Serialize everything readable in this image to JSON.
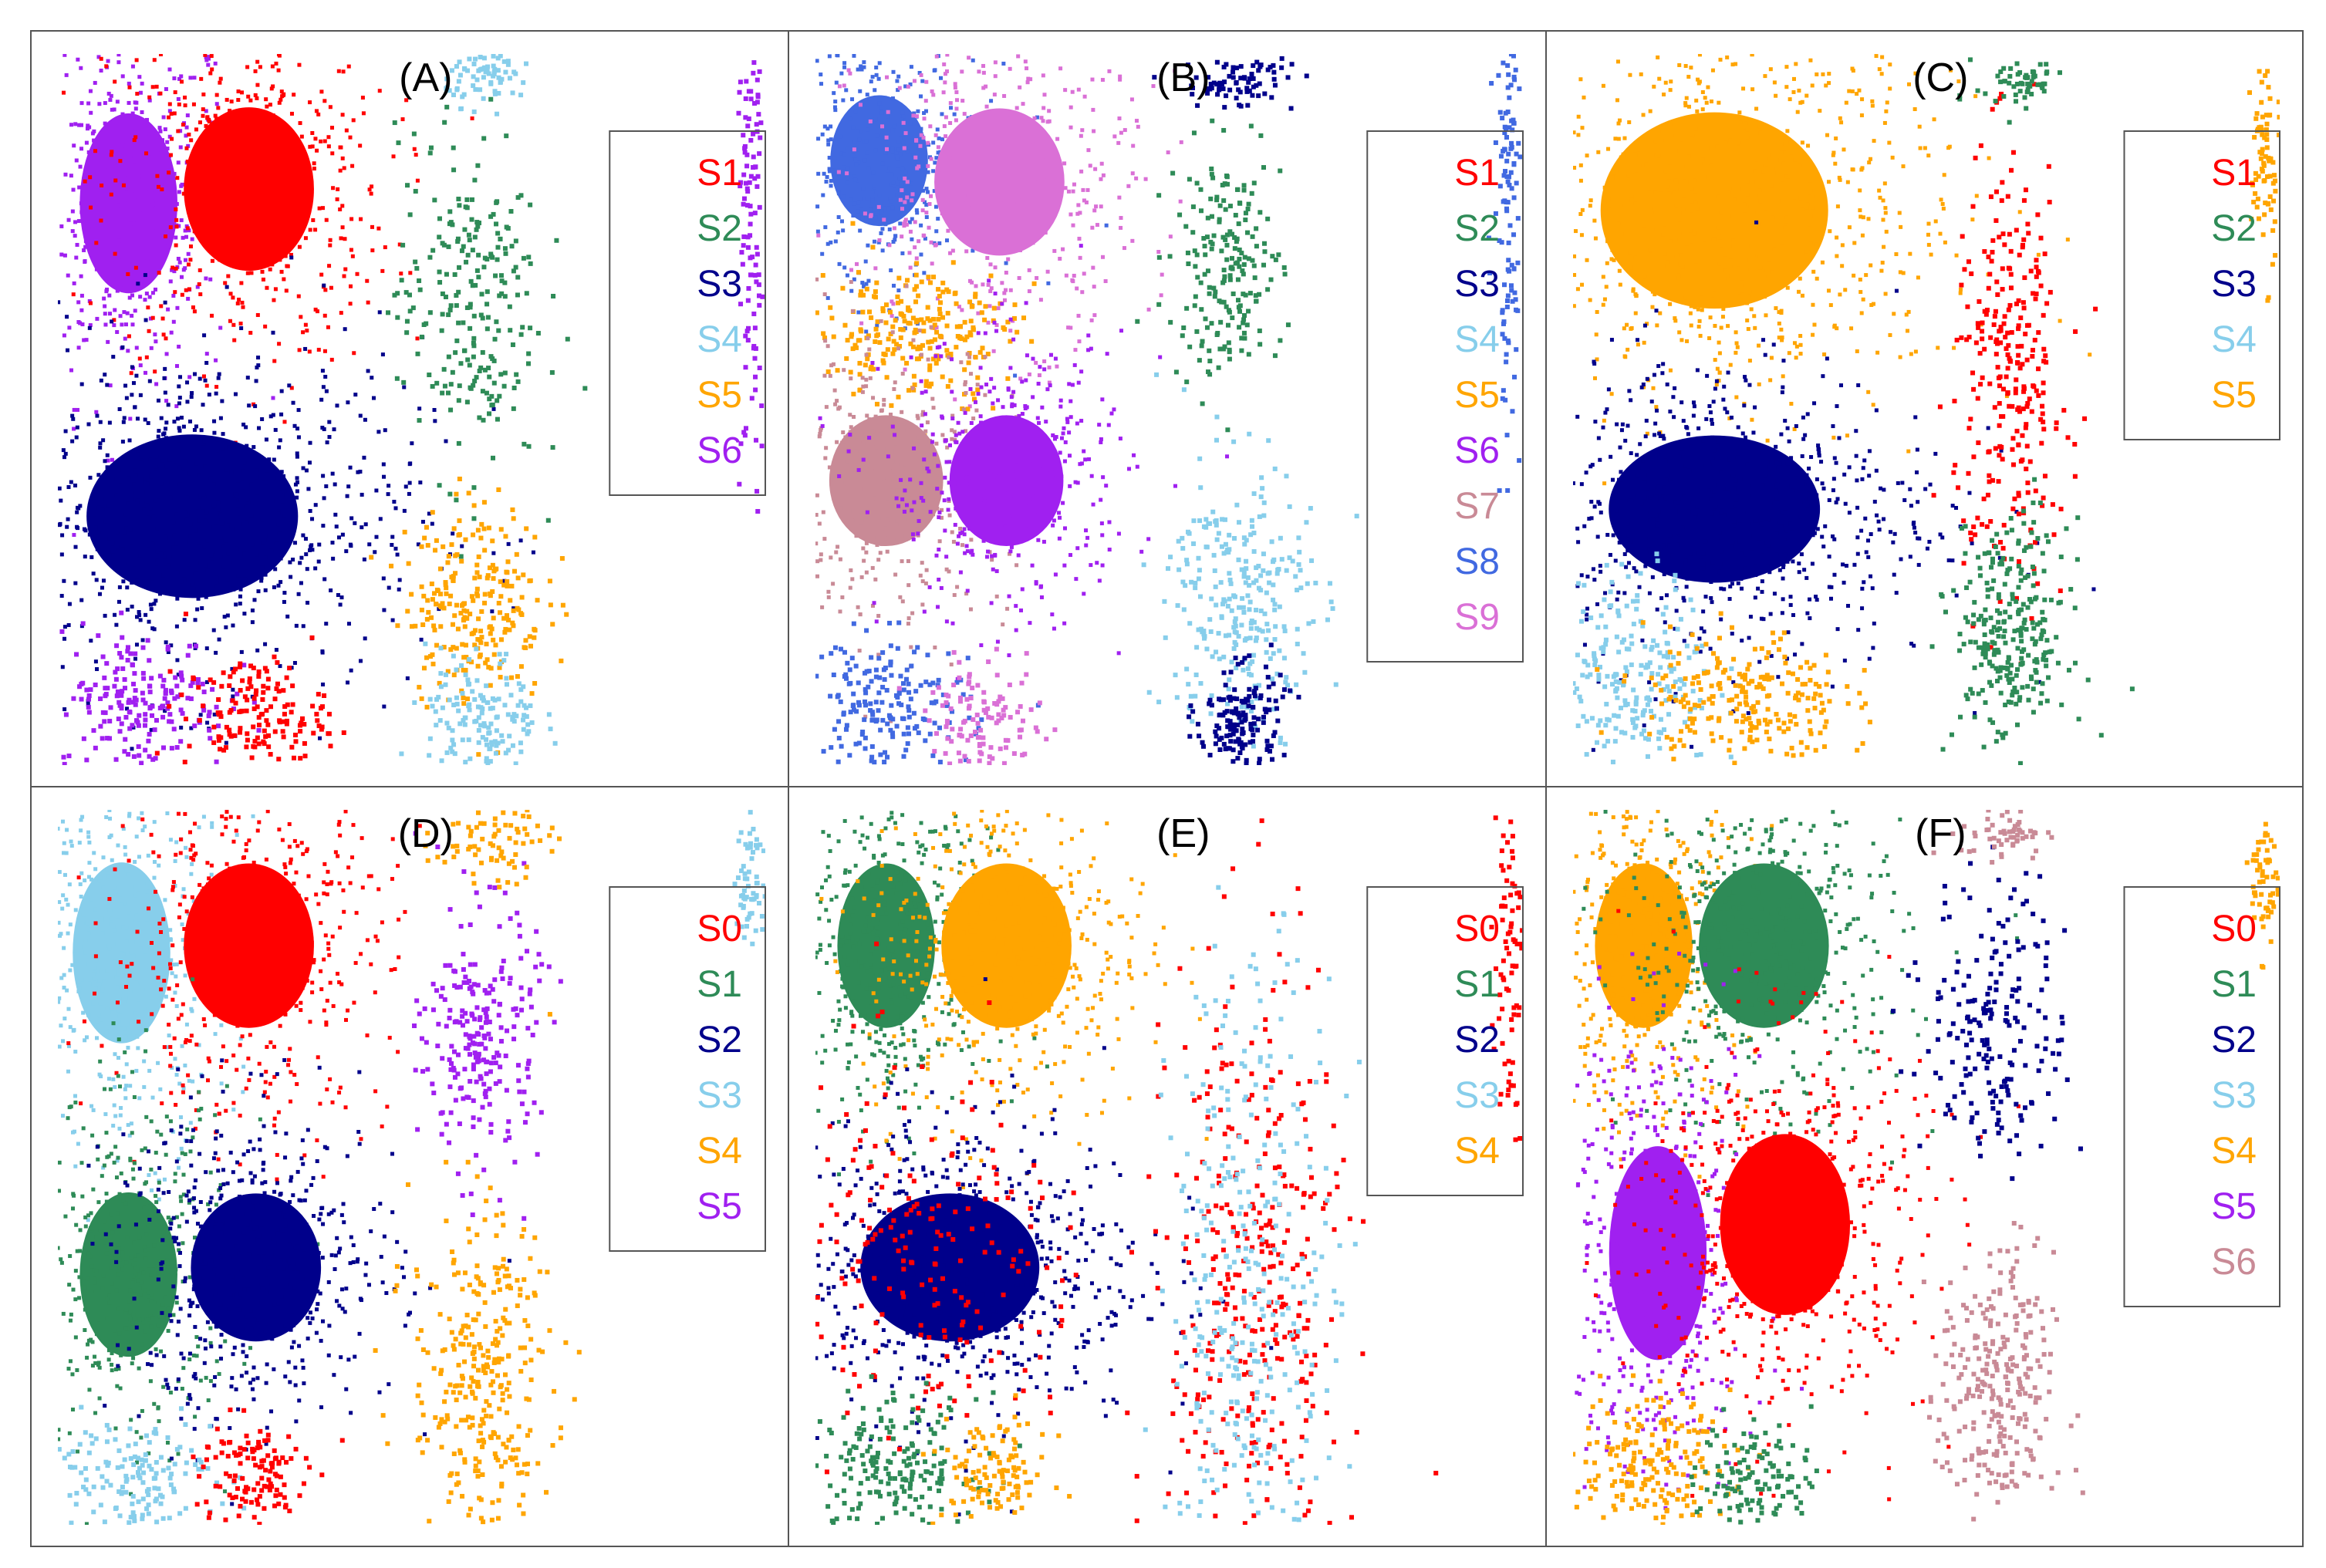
{
  "figure": {
    "description": "Six-panel scatter plot grid of clustered state assignments",
    "palette": {
      "red": "#ff0000",
      "green": "#2e8b57",
      "navy": "#00008b",
      "lightblue": "#87ceeb",
      "orange": "#ffa500",
      "purple": "#a020f0",
      "rosybrown": "#c98a96",
      "royalblue": "#4169e1",
      "orchid": "#da70d6"
    }
  },
  "chart_data": [
    {
      "type": "scatter",
      "panel_label": "(A)",
      "legend": [
        {
          "label": "S1",
          "color": "#ff0000"
        },
        {
          "label": "S2",
          "color": "#2e8b57"
        },
        {
          "label": "S3",
          "color": "#00008b"
        },
        {
          "label": "S4",
          "color": "#87ceeb"
        },
        {
          "label": "S5",
          "color": "#ffa500"
        },
        {
          "label": "S6",
          "color": "#a020f0"
        }
      ],
      "xlim": [
        0,
        1
      ],
      "ylim": [
        0,
        1
      ],
      "axes_visible": false,
      "clusters": [
        {
          "state": "S6",
          "x": 0.1,
          "y": 0.79,
          "sx": 0.06,
          "sy": 0.11,
          "n": 120
        },
        {
          "state": "S1",
          "x": 0.27,
          "y": 0.81,
          "sx": 0.08,
          "sy": 0.1,
          "n": 120
        },
        {
          "state": "S3",
          "x": 0.19,
          "y": 0.35,
          "sx": 0.13,
          "sy": 0.1,
          "n": 200
        },
        {
          "state": "S6",
          "x": 0.12,
          "y": 0.09,
          "sx": 0.06,
          "sy": 0.05,
          "n": 50
        },
        {
          "state": "S1",
          "x": 0.28,
          "y": 0.07,
          "sx": 0.05,
          "sy": 0.04,
          "n": 40
        },
        {
          "state": "S2",
          "x": 0.58,
          "y": 0.65,
          "sx": 0.05,
          "sy": 0.12,
          "n": 60
        },
        {
          "state": "S5",
          "x": 0.59,
          "y": 0.23,
          "sx": 0.05,
          "sy": 0.07,
          "n": 60
        },
        {
          "state": "S4",
          "x": 0.6,
          "y": 0.06,
          "sx": 0.04,
          "sy": 0.05,
          "n": 40
        },
        {
          "state": "S4",
          "x": 0.61,
          "y": 0.97,
          "sx": 0.03,
          "sy": 0.02,
          "n": 20
        },
        {
          "state": "S6",
          "x": 0.98,
          "y": 0.75,
          "sx": 0.01,
          "sy": 0.2,
          "n": 30
        }
      ]
    },
    {
      "type": "scatter",
      "panel_label": "(B)",
      "legend": [
        {
          "label": "S1",
          "color": "#ff0000"
        },
        {
          "label": "S2",
          "color": "#2e8b57"
        },
        {
          "label": "S3",
          "color": "#00008b"
        },
        {
          "label": "S4",
          "color": "#87ceeb"
        },
        {
          "label": "S5",
          "color": "#ffa500"
        },
        {
          "label": "S6",
          "color": "#a020f0"
        },
        {
          "label": "S7",
          "color": "#c98a96"
        },
        {
          "label": "S8",
          "color": "#4169e1"
        },
        {
          "label": "S9",
          "color": "#da70d6"
        }
      ],
      "xlim": [
        0,
        1
      ],
      "ylim": [
        0,
        1
      ],
      "axes_visible": false,
      "clusters": [
        {
          "state": "S8",
          "x": 0.09,
          "y": 0.85,
          "sx": 0.06,
          "sy": 0.08,
          "n": 100
        },
        {
          "state": "S9",
          "x": 0.26,
          "y": 0.82,
          "sx": 0.08,
          "sy": 0.09,
          "n": 120
        },
        {
          "state": "S5",
          "x": 0.14,
          "y": 0.61,
          "sx": 0.07,
          "sy": 0.05,
          "n": 60
        },
        {
          "state": "S7",
          "x": 0.1,
          "y": 0.4,
          "sx": 0.07,
          "sy": 0.08,
          "n": 100
        },
        {
          "state": "S6",
          "x": 0.27,
          "y": 0.4,
          "sx": 0.07,
          "sy": 0.08,
          "n": 100
        },
        {
          "state": "S8",
          "x": 0.1,
          "y": 0.08,
          "sx": 0.06,
          "sy": 0.05,
          "n": 50
        },
        {
          "state": "S9",
          "x": 0.24,
          "y": 0.06,
          "sx": 0.04,
          "sy": 0.04,
          "n": 30
        },
        {
          "state": "S2",
          "x": 0.58,
          "y": 0.7,
          "sx": 0.04,
          "sy": 0.08,
          "n": 50
        },
        {
          "state": "S4",
          "x": 0.6,
          "y": 0.23,
          "sx": 0.05,
          "sy": 0.1,
          "n": 70
        },
        {
          "state": "S3",
          "x": 0.6,
          "y": 0.06,
          "sx": 0.03,
          "sy": 0.04,
          "n": 40
        },
        {
          "state": "S3",
          "x": 0.6,
          "y": 0.96,
          "sx": 0.04,
          "sy": 0.02,
          "n": 20
        },
        {
          "state": "S8",
          "x": 0.98,
          "y": 0.8,
          "sx": 0.01,
          "sy": 0.15,
          "n": 30
        }
      ]
    },
    {
      "type": "scatter",
      "panel_label": "(C)",
      "legend": [
        {
          "label": "S1",
          "color": "#ff0000"
        },
        {
          "label": "S2",
          "color": "#2e8b57"
        },
        {
          "label": "S3",
          "color": "#00008b"
        },
        {
          "label": "S4",
          "color": "#87ceeb"
        },
        {
          "label": "S5",
          "color": "#ffa500"
        }
      ],
      "xlim": [
        0,
        1
      ],
      "ylim": [
        0,
        1
      ],
      "axes_visible": false,
      "clusters": [
        {
          "state": "S5",
          "x": 0.2,
          "y": 0.78,
          "sx": 0.14,
          "sy": 0.12,
          "n": 200
        },
        {
          "state": "S3",
          "x": 0.2,
          "y": 0.36,
          "sx": 0.13,
          "sy": 0.09,
          "n": 170
        },
        {
          "state": "S4",
          "x": 0.08,
          "y": 0.13,
          "sx": 0.06,
          "sy": 0.07,
          "n": 60
        },
        {
          "state": "S5",
          "x": 0.24,
          "y": 0.09,
          "sx": 0.07,
          "sy": 0.05,
          "n": 60
        },
        {
          "state": "S1",
          "x": 0.62,
          "y": 0.55,
          "sx": 0.04,
          "sy": 0.15,
          "n": 70
        },
        {
          "state": "S2",
          "x": 0.62,
          "y": 0.18,
          "sx": 0.04,
          "sy": 0.08,
          "n": 70
        },
        {
          "state": "S2",
          "x": 0.63,
          "y": 0.96,
          "sx": 0.03,
          "sy": 0.02,
          "n": 15
        },
        {
          "state": "S5",
          "x": 0.98,
          "y": 0.85,
          "sx": 0.01,
          "sy": 0.08,
          "n": 20
        }
      ]
    },
    {
      "type": "scatter",
      "panel_label": "(D)",
      "legend": [
        {
          "label": "S0",
          "color": "#ff0000"
        },
        {
          "label": "S1",
          "color": "#2e8b57"
        },
        {
          "label": "S2",
          "color": "#00008b"
        },
        {
          "label": "S3",
          "color": "#87ceeb"
        },
        {
          "label": "S4",
          "color": "#ffa500"
        },
        {
          "label": "S5",
          "color": "#a020f0"
        }
      ],
      "xlim": [
        0,
        1
      ],
      "ylim": [
        0,
        1
      ],
      "axes_visible": false,
      "clusters": [
        {
          "state": "S3",
          "x": 0.09,
          "y": 0.8,
          "sx": 0.06,
          "sy": 0.11,
          "n": 120
        },
        {
          "state": "S0",
          "x": 0.27,
          "y": 0.81,
          "sx": 0.08,
          "sy": 0.1,
          "n": 120
        },
        {
          "state": "S1",
          "x": 0.1,
          "y": 0.35,
          "sx": 0.06,
          "sy": 0.1,
          "n": 100
        },
        {
          "state": "S2",
          "x": 0.28,
          "y": 0.36,
          "sx": 0.08,
          "sy": 0.09,
          "n": 120
        },
        {
          "state": "S3",
          "x": 0.1,
          "y": 0.07,
          "sx": 0.06,
          "sy": 0.04,
          "n": 40
        },
        {
          "state": "S0",
          "x": 0.27,
          "y": 0.07,
          "sx": 0.04,
          "sy": 0.04,
          "n": 30
        },
        {
          "state": "S5",
          "x": 0.6,
          "y": 0.68,
          "sx": 0.04,
          "sy": 0.09,
          "n": 60
        },
        {
          "state": "S4",
          "x": 0.6,
          "y": 0.2,
          "sx": 0.05,
          "sy": 0.12,
          "n": 80
        },
        {
          "state": "S4",
          "x": 0.61,
          "y": 0.96,
          "sx": 0.04,
          "sy": 0.03,
          "n": 20
        },
        {
          "state": "S3",
          "x": 0.98,
          "y": 0.9,
          "sx": 0.01,
          "sy": 0.05,
          "n": 15
        }
      ]
    },
    {
      "type": "scatter",
      "panel_label": "(E)",
      "legend": [
        {
          "label": "S0",
          "color": "#ff0000"
        },
        {
          "label": "S1",
          "color": "#2e8b57"
        },
        {
          "label": "S2",
          "color": "#00008b"
        },
        {
          "label": "S3",
          "color": "#87ceeb"
        },
        {
          "label": "S4",
          "color": "#ffa500"
        }
      ],
      "xlim": [
        0,
        1
      ],
      "ylim": [
        0,
        1
      ],
      "axes_visible": false,
      "clusters": [
        {
          "state": "S1",
          "x": 0.1,
          "y": 0.81,
          "sx": 0.06,
          "sy": 0.1,
          "n": 120
        },
        {
          "state": "S4",
          "x": 0.27,
          "y": 0.81,
          "sx": 0.08,
          "sy": 0.1,
          "n": 120
        },
        {
          "state": "S2",
          "x": 0.19,
          "y": 0.36,
          "sx": 0.11,
          "sy": 0.09,
          "n": 160
        },
        {
          "state": "S0",
          "x": 0.14,
          "y": 0.35,
          "sx": 0.13,
          "sy": 0.14,
          "n": 60
        },
        {
          "state": "S1",
          "x": 0.11,
          "y": 0.08,
          "sx": 0.06,
          "sy": 0.05,
          "n": 50
        },
        {
          "state": "S4",
          "x": 0.25,
          "y": 0.07,
          "sx": 0.04,
          "sy": 0.04,
          "n": 30
        },
        {
          "state": "S0",
          "x": 0.62,
          "y": 0.3,
          "sx": 0.06,
          "sy": 0.25,
          "n": 90
        },
        {
          "state": "S3",
          "x": 0.62,
          "y": 0.3,
          "sx": 0.06,
          "sy": 0.25,
          "n": 90
        },
        {
          "state": "S0",
          "x": 0.98,
          "y": 0.8,
          "sx": 0.01,
          "sy": 0.12,
          "n": 20
        }
      ]
    },
    {
      "type": "scatter",
      "panel_label": "(F)",
      "legend": [
        {
          "label": "S0",
          "color": "#ff0000"
        },
        {
          "label": "S1",
          "color": "#2e8b57"
        },
        {
          "label": "S2",
          "color": "#00008b"
        },
        {
          "label": "S3",
          "color": "#87ceeb"
        },
        {
          "label": "S4",
          "color": "#ffa500"
        },
        {
          "label": "S5",
          "color": "#a020f0"
        },
        {
          "label": "S6",
          "color": "#c98a96"
        }
      ],
      "xlim": [
        0,
        1
      ],
      "ylim": [
        0,
        1
      ],
      "axes_visible": false,
      "clusters": [
        {
          "state": "S4",
          "x": 0.1,
          "y": 0.81,
          "sx": 0.06,
          "sy": 0.1,
          "n": 120
        },
        {
          "state": "S1",
          "x": 0.27,
          "y": 0.81,
          "sx": 0.08,
          "sy": 0.1,
          "n": 120
        },
        {
          "state": "S5",
          "x": 0.12,
          "y": 0.38,
          "sx": 0.06,
          "sy": 0.13,
          "n": 120
        },
        {
          "state": "S0",
          "x": 0.3,
          "y": 0.42,
          "sx": 0.08,
          "sy": 0.11,
          "n": 140
        },
        {
          "state": "S4",
          "x": 0.1,
          "y": 0.08,
          "sx": 0.06,
          "sy": 0.05,
          "n": 50
        },
        {
          "state": "S1",
          "x": 0.26,
          "y": 0.07,
          "sx": 0.04,
          "sy": 0.04,
          "n": 30
        },
        {
          "state": "S2",
          "x": 0.6,
          "y": 0.7,
          "sx": 0.05,
          "sy": 0.1,
          "n": 50
        },
        {
          "state": "S6",
          "x": 0.6,
          "y": 0.18,
          "sx": 0.04,
          "sy": 0.1,
          "n": 70
        },
        {
          "state": "S6",
          "x": 0.61,
          "y": 0.97,
          "sx": 0.03,
          "sy": 0.02,
          "n": 15
        },
        {
          "state": "S4",
          "x": 0.98,
          "y": 0.9,
          "sx": 0.01,
          "sy": 0.05,
          "n": 15
        }
      ]
    }
  ]
}
